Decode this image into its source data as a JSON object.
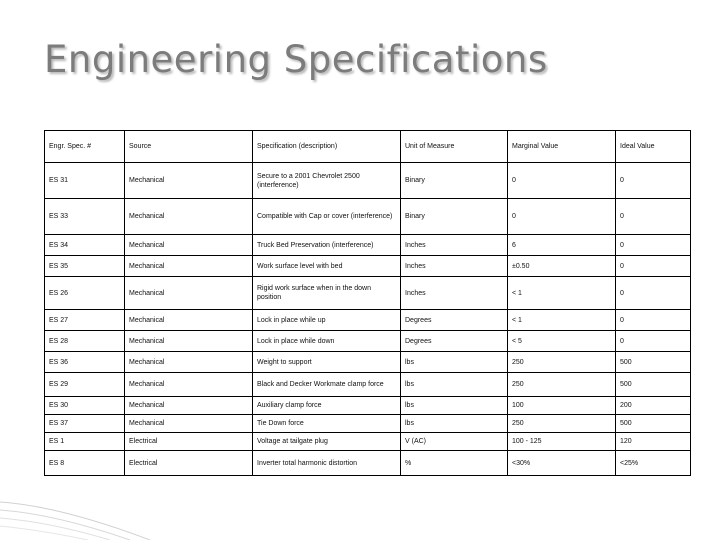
{
  "slide": {
    "title": "Engineering Specifications"
  },
  "table": {
    "headers": [
      "Engr. Spec. #",
      "Source",
      "Specification (description)",
      "Unit of Measure",
      "Marginal Value",
      "Ideal Value"
    ],
    "rows": [
      [
        "ES 31",
        "Mechanical",
        "Secure to a 2001 Chevrolet 2500 (interference)",
        "Binary",
        "0",
        "0"
      ],
      [
        "ES 33",
        "Mechanical",
        "Compatible with Cap or cover (interference)",
        "Binary",
        "0",
        "0"
      ],
      [
        "ES 34",
        "Mechanical",
        "Truck Bed Preservation (interference)",
        "Inches",
        "6",
        "0"
      ],
      [
        "ES 35",
        "Mechanical",
        "Work surface level with bed",
        "Inches",
        "±0.50",
        "0"
      ],
      [
        "ES 26",
        "Mechanical",
        "Rigid work surface when in the down position",
        "Inches",
        "< 1",
        "0"
      ],
      [
        "ES 27",
        "Mechanical",
        "Lock in place while up",
        "Degrees",
        "< 1",
        "0"
      ],
      [
        "ES 28",
        "Mechanical",
        "Lock in place while down",
        "Degrees",
        "< 5",
        "0"
      ],
      [
        "ES 36",
        "Mechanical",
        "Weight to support",
        "lbs",
        "250",
        "500"
      ],
      [
        "ES 29",
        "Mechanical",
        "Black and Decker Workmate clamp force",
        "lbs",
        "250",
        "500"
      ],
      [
        "ES 30",
        "Mechanical",
        "Auxiliary clamp force",
        "lbs",
        "100",
        "200"
      ],
      [
        "ES 37",
        "Mechanical",
        "Tie Down force",
        "lbs",
        "250",
        "500"
      ],
      [
        "ES 1",
        "Electrical",
        "Voltage at tailgate plug",
        "V (AC)",
        "100 - 125",
        "120"
      ],
      [
        "ES 8",
        "Electrical",
        "Inverter total harmonic distortion",
        "%",
        "<30%",
        "<25%"
      ]
    ]
  }
}
